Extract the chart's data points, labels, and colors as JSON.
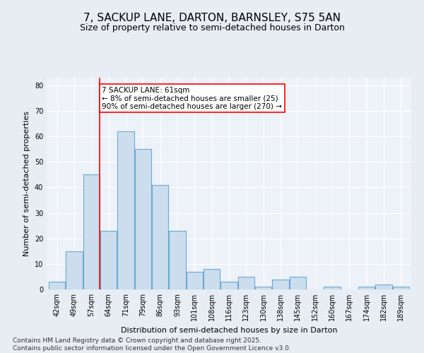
{
  "title": "7, SACKUP LANE, DARTON, BARNSLEY, S75 5AN",
  "subtitle": "Size of property relative to semi-detached houses in Darton",
  "xlabel": "Distribution of semi-detached houses by size in Darton",
  "ylabel": "Number of semi-detached properties",
  "categories": [
    "42sqm",
    "49sqm",
    "57sqm",
    "64sqm",
    "71sqm",
    "79sqm",
    "86sqm",
    "93sqm",
    "101sqm",
    "108sqm",
    "116sqm",
    "123sqm",
    "130sqm",
    "138sqm",
    "145sqm",
    "152sqm",
    "160sqm",
    "167sqm",
    "174sqm",
    "182sqm",
    "189sqm"
  ],
  "values": [
    3,
    15,
    45,
    23,
    62,
    55,
    41,
    23,
    7,
    8,
    3,
    5,
    1,
    4,
    5,
    0,
    1,
    0,
    1,
    2,
    1
  ],
  "bar_color": "#ccdded",
  "bar_edge_color": "#6aaad4",
  "red_line_x": 2.5,
  "annotation_text": "7 SACKUP LANE: 61sqm\n← 8% of semi-detached houses are smaller (25)\n90% of semi-detached houses are larger (270) →",
  "annotation_box_color": "white",
  "annotation_box_edge": "red",
  "ylim": [
    0,
    83
  ],
  "yticks": [
    0,
    10,
    20,
    30,
    40,
    50,
    60,
    70,
    80
  ],
  "footer": "Contains HM Land Registry data © Crown copyright and database right 2025.\nContains public sector information licensed under the Open Government Licence v3.0.",
  "bg_color": "#e8edf4",
  "plot_bg_color": "#edf1f8",
  "grid_color": "#ffffff",
  "title_fontsize": 11,
  "subtitle_fontsize": 9,
  "axis_label_fontsize": 8,
  "tick_fontsize": 7,
  "footer_fontsize": 6.5,
  "annotation_fontsize": 7.5
}
